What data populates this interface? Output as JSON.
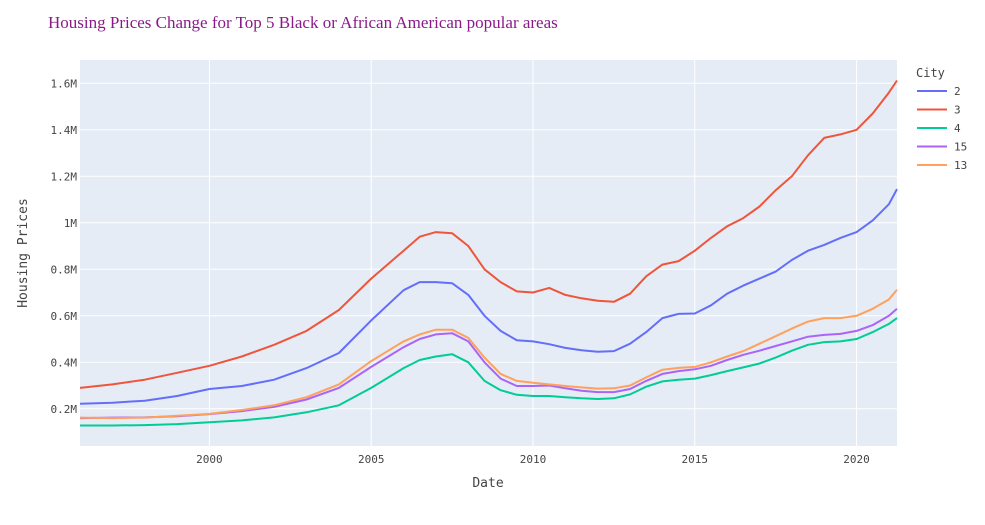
{
  "chart_data": {
    "type": "line",
    "title": "Housing Prices Change for Top 5 Black or African American popular areas",
    "xlabel": "Date",
    "ylabel": "Housing Prices",
    "xlim": [
      1996.0,
      2021.25
    ],
    "ylim": [
      40000,
      1700000
    ],
    "x_ticks": [
      2000,
      2005,
      2010,
      2015,
      2020
    ],
    "x_tick_labels": [
      "2000",
      "2005",
      "2010",
      "2015",
      "2020"
    ],
    "y_ticks": [
      200000,
      400000,
      600000,
      800000,
      1000000,
      1200000,
      1400000,
      1600000
    ],
    "y_tick_labels": [
      "0.2M",
      "0.4M",
      "0.6M",
      "0.8M",
      "1M",
      "1.2M",
      "1.4M",
      "1.6M"
    ],
    "grid": true,
    "legend_title": "City",
    "legend_position": "right",
    "x": [
      1996,
      1997,
      1998,
      1999,
      2000,
      2001,
      2002,
      2003,
      2004,
      2005,
      2006,
      2006.5,
      2007,
      2007.5,
      2008,
      2008.5,
      2009,
      2009.5,
      2010,
      2010.5,
      2011,
      2011.5,
      2012,
      2012.5,
      2013,
      2013.5,
      2014,
      2014.5,
      2015,
      2015.5,
      2016,
      2016.5,
      2017,
      2017.5,
      2018,
      2018.5,
      2019,
      2019.5,
      2020,
      2020.5,
      2021,
      2021.25
    ],
    "series": [
      {
        "name": "2",
        "color": "#636efa",
        "values": [
          222000,
          226000,
          235000,
          255000,
          285000,
          298000,
          325000,
          375000,
          440000,
          580000,
          710000,
          745000,
          745000,
          740000,
          690000,
          600000,
          535000,
          495000,
          490000,
          478000,
          462000,
          452000,
          445000,
          448000,
          480000,
          530000,
          590000,
          608000,
          610000,
          645000,
          695000,
          730000,
          760000,
          790000,
          840000,
          880000,
          905000,
          935000,
          960000,
          1010000,
          1080000,
          1145000
        ]
      },
      {
        "name": "3",
        "color": "#ef553b",
        "values": [
          290000,
          305000,
          325000,
          355000,
          385000,
          425000,
          475000,
          535000,
          625000,
          760000,
          880000,
          940000,
          960000,
          955000,
          900000,
          800000,
          745000,
          705000,
          700000,
          720000,
          690000,
          675000,
          665000,
          660000,
          695000,
          770000,
          820000,
          835000,
          880000,
          935000,
          985000,
          1020000,
          1070000,
          1140000,
          1200000,
          1290000,
          1365000,
          1380000,
          1400000,
          1470000,
          1560000,
          1612000
        ]
      },
      {
        "name": "4",
        "color": "#00cc96",
        "values": [
          128000,
          128000,
          130000,
          134000,
          142000,
          150000,
          163000,
          185000,
          215000,
          290000,
          375000,
          410000,
          425000,
          435000,
          400000,
          320000,
          280000,
          260000,
          255000,
          255000,
          250000,
          245000,
          242000,
          245000,
          262000,
          295000,
          318000,
          325000,
          330000,
          345000,
          362000,
          378000,
          395000,
          420000,
          450000,
          475000,
          487000,
          490000,
          500000,
          530000,
          565000,
          590000
        ]
      },
      {
        "name": "15",
        "color": "#ab63fa",
        "values": [
          160000,
          162000,
          163000,
          168000,
          177000,
          190000,
          208000,
          240000,
          290000,
          380000,
          465000,
          500000,
          520000,
          525000,
          490000,
          400000,
          330000,
          298000,
          298000,
          300000,
          288000,
          278000,
          272000,
          272000,
          285000,
          320000,
          350000,
          362000,
          370000,
          385000,
          410000,
          432000,
          450000,
          470000,
          490000,
          510000,
          518000,
          522000,
          535000,
          560000,
          600000,
          630000
        ]
      },
      {
        "name": "13",
        "color": "#ffa15a",
        "values": [
          162000,
          160000,
          162000,
          170000,
          178000,
          195000,
          215000,
          250000,
          305000,
          405000,
          490000,
          520000,
          540000,
          540000,
          505000,
          420000,
          350000,
          320000,
          312000,
          305000,
          298000,
          292000,
          287000,
          288000,
          300000,
          335000,
          368000,
          376000,
          380000,
          400000,
          425000,
          448000,
          480000,
          512000,
          545000,
          575000,
          590000,
          590000,
          600000,
          630000,
          670000,
          712000
        ]
      }
    ]
  }
}
